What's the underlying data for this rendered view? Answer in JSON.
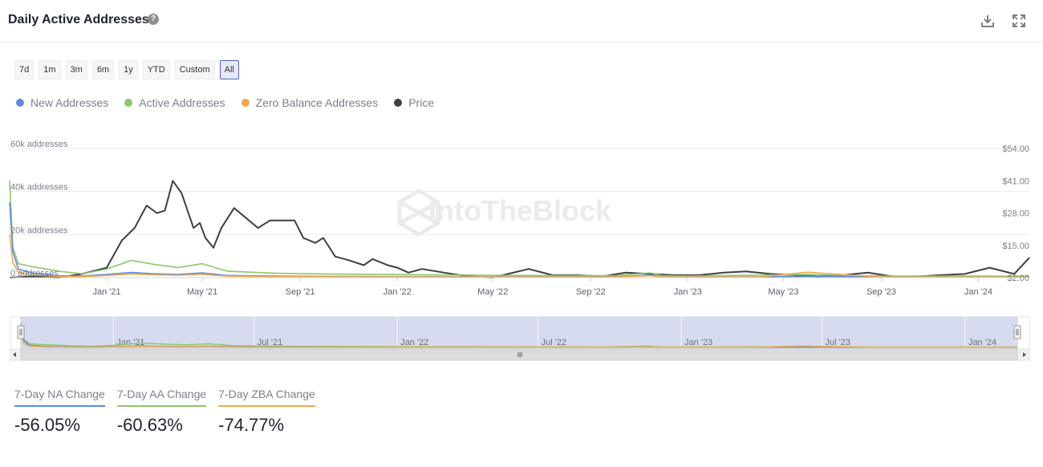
{
  "header": {
    "title": "Daily Active Addresses",
    "help_icon": "question-circle-icon",
    "actions": [
      "download-icon",
      "fullscreen-icon"
    ]
  },
  "range_buttons": [
    {
      "label": "7d",
      "active": false
    },
    {
      "label": "1m",
      "active": false
    },
    {
      "label": "3m",
      "active": false
    },
    {
      "label": "6m",
      "active": false
    },
    {
      "label": "1y",
      "active": false
    },
    {
      "label": "YTD",
      "active": false
    },
    {
      "label": "Custom",
      "active": false
    },
    {
      "label": "All",
      "active": true
    }
  ],
  "legend": [
    {
      "label": "New Addresses",
      "color": "#5b8be0"
    },
    {
      "label": "Active Addresses",
      "color": "#8cc76a"
    },
    {
      "label": "Zero Balance Addresses",
      "color": "#efa94a"
    },
    {
      "label": "Price",
      "color": "#3d3f46"
    }
  ],
  "watermark": "IntoTheBlock",
  "navigator_labels": [
    "Jan '21",
    "Jul '21",
    "Jan '22",
    "Jul '22",
    "Jan '23",
    "Jul '23",
    "Jan '24"
  ],
  "stats": [
    {
      "label": "7-Day NA Change",
      "value": "-56.05%",
      "color": "#5b8be0"
    },
    {
      "label": "7-Day AA Change",
      "value": "-60.63%",
      "color": "#8cc76a"
    },
    {
      "label": "7-Day ZBA Change",
      "value": "-74.77%",
      "color": "#efa94a"
    }
  ],
  "chart_data": {
    "type": "line",
    "title": "Daily Active Addresses",
    "x_range": [
      "2020-09-01",
      "2024-03-05"
    ],
    "x_ticks": [
      {
        "label": "Jan '21",
        "date": "2021-01-01"
      },
      {
        "label": "May '21",
        "date": "2021-05-01"
      },
      {
        "label": "Sep '21",
        "date": "2021-09-01"
      },
      {
        "label": "Jan '22",
        "date": "2022-01-01"
      },
      {
        "label": "May '22",
        "date": "2022-05-01"
      },
      {
        "label": "Sep '22",
        "date": "2022-09-01"
      },
      {
        "label": "Jan '23",
        "date": "2023-01-01"
      },
      {
        "label": "May '23",
        "date": "2023-05-01"
      },
      {
        "label": "Sep '23",
        "date": "2023-09-01"
      },
      {
        "label": "Jan '24",
        "date": "2024-01-01"
      }
    ],
    "y_left": {
      "range": [
        0,
        60000
      ],
      "ticks": [
        {
          "value": 0,
          "label": "0 addresses"
        },
        {
          "value": 20000,
          "label": "20k addresses"
        },
        {
          "value": 40000,
          "label": "40k addresses"
        },
        {
          "value": 60000,
          "label": "60k addresses"
        }
      ]
    },
    "y_right": {
      "range": [
        2,
        54
      ],
      "ticks": [
        {
          "value": 2,
          "label": "$2.00"
        },
        {
          "value": 15,
          "label": "$15.00"
        },
        {
          "value": 28,
          "label": "$28.00"
        },
        {
          "value": 41,
          "label": "$41.00"
        },
        {
          "value": 54,
          "label": "$54.00"
        }
      ]
    },
    "grid": true,
    "series": [
      {
        "name": "New Addresses",
        "axis": "left",
        "color": "#5b8be0",
        "x": [
          "2020-09-01",
          "2020-09-05",
          "2020-09-12",
          "2020-10-01",
          "2020-11-01",
          "2020-12-01",
          "2021-01-01",
          "2021-02-01",
          "2021-03-01",
          "2021-04-01",
          "2021-05-01",
          "2021-06-01",
          "2021-08-01",
          "2021-10-01",
          "2022-01-01",
          "2022-06-01",
          "2022-10-01",
          "2022-11-15",
          "2022-12-01",
          "2023-01-01",
          "2023-04-01",
          "2023-06-01",
          "2023-09-01",
          "2024-01-01",
          "2024-03-05"
        ],
        "y": [
          35000,
          12000,
          4000,
          2000,
          900,
          700,
          1500,
          2400,
          1800,
          1500,
          2200,
          1000,
          700,
          600,
          500,
          400,
          400,
          1200,
          400,
          350,
          400,
          600,
          300,
          300,
          250
        ]
      },
      {
        "name": "Active Addresses",
        "axis": "left",
        "color": "#8cc76a",
        "x": [
          "2020-09-01",
          "2020-09-05",
          "2020-09-12",
          "2020-10-01",
          "2020-11-01",
          "2020-12-01",
          "2021-01-01",
          "2021-02-01",
          "2021-03-01",
          "2021-04-01",
          "2021-05-01",
          "2021-06-01",
          "2021-08-01",
          "2021-10-01",
          "2022-01-01",
          "2022-06-01",
          "2022-10-01",
          "2022-11-15",
          "2022-12-01",
          "2023-01-01",
          "2023-04-01",
          "2023-06-01",
          "2023-09-01",
          "2024-01-01",
          "2024-03-05"
        ],
        "y": [
          45000,
          14000,
          6500,
          5000,
          3000,
          1800,
          4000,
          8000,
          6200,
          4700,
          6500,
          3000,
          2000,
          1700,
          1400,
          1000,
          900,
          2200,
          900,
          800,
          1200,
          1400,
          700,
          700,
          600
        ]
      },
      {
        "name": "Zero Balance Addresses",
        "axis": "left",
        "color": "#efa94a",
        "x": [
          "2020-09-01",
          "2020-09-05",
          "2020-09-12",
          "2020-10-01",
          "2020-11-01",
          "2020-12-01",
          "2021-01-01",
          "2021-02-01",
          "2021-03-01",
          "2021-04-01",
          "2021-05-01",
          "2021-06-01",
          "2021-08-01",
          "2021-10-01",
          "2022-01-01",
          "2022-06-01",
          "2022-10-01",
          "2022-11-15",
          "2022-12-01",
          "2023-01-01",
          "2023-04-01",
          "2023-06-01",
          "2023-09-01",
          "2024-01-01",
          "2024-03-05"
        ],
        "y": [
          20000,
          7000,
          2500,
          1200,
          600,
          500,
          1000,
          1700,
          1300,
          1100,
          1500,
          700,
          500,
          400,
          350,
          300,
          300,
          900,
          300,
          300,
          350,
          2500,
          250,
          250,
          200
        ]
      },
      {
        "name": "Price",
        "axis": "right",
        "color": "#3d3f46",
        "x": [
          "2020-09-01",
          "2020-10-01",
          "2020-11-01",
          "2020-12-01",
          "2021-01-01",
          "2021-01-20",
          "2021-02-05",
          "2021-02-20",
          "2021-03-05",
          "2021-03-15",
          "2021-03-25",
          "2021-04-05",
          "2021-04-20",
          "2021-04-28",
          "2021-05-05",
          "2021-05-15",
          "2021-05-25",
          "2021-06-10",
          "2021-06-25",
          "2021-07-10",
          "2021-07-25",
          "2021-08-10",
          "2021-08-25",
          "2021-09-05",
          "2021-09-20",
          "2021-09-30",
          "2021-10-15",
          "2021-11-01",
          "2021-11-20",
          "2021-12-01",
          "2021-12-20",
          "2022-01-01",
          "2022-01-15",
          "2022-02-01",
          "2022-03-01",
          "2022-04-01",
          "2022-05-01",
          "2022-05-20",
          "2022-06-15",
          "2022-07-15",
          "2022-08-15",
          "2022-09-15",
          "2022-10-15",
          "2022-11-15",
          "2022-12-15",
          "2023-01-15",
          "2023-02-15",
          "2023-03-15",
          "2023-04-15",
          "2023-05-15",
          "2023-06-15",
          "2023-07-15",
          "2023-08-15",
          "2023-09-15",
          "2023-10-15",
          "2023-11-15",
          "2023-12-15",
          "2024-01-15",
          "2024-02-15",
          "2024-03-05"
        ],
        "y": [
          2.0,
          2.5,
          2.0,
          3.5,
          6.0,
          17.0,
          22.0,
          31.0,
          28.0,
          29.0,
          41.0,
          36.0,
          22.0,
          24.0,
          18.0,
          14.0,
          22.0,
          30.0,
          26.0,
          22.0,
          25.0,
          25.0,
          25.0,
          18.0,
          16.0,
          18.0,
          10.5,
          9.0,
          7.0,
          9.5,
          7.0,
          6.0,
          4.0,
          5.5,
          4.0,
          2.5,
          2.0,
          3.5,
          5.5,
          3.0,
          3.0,
          2.5,
          4.0,
          3.5,
          3.0,
          3.0,
          4.0,
          4.5,
          3.5,
          3.0,
          2.5,
          3.0,
          4.0,
          2.5,
          2.5,
          3.0,
          3.5,
          6.0,
          3.5,
          10.0
        ]
      }
    ]
  }
}
